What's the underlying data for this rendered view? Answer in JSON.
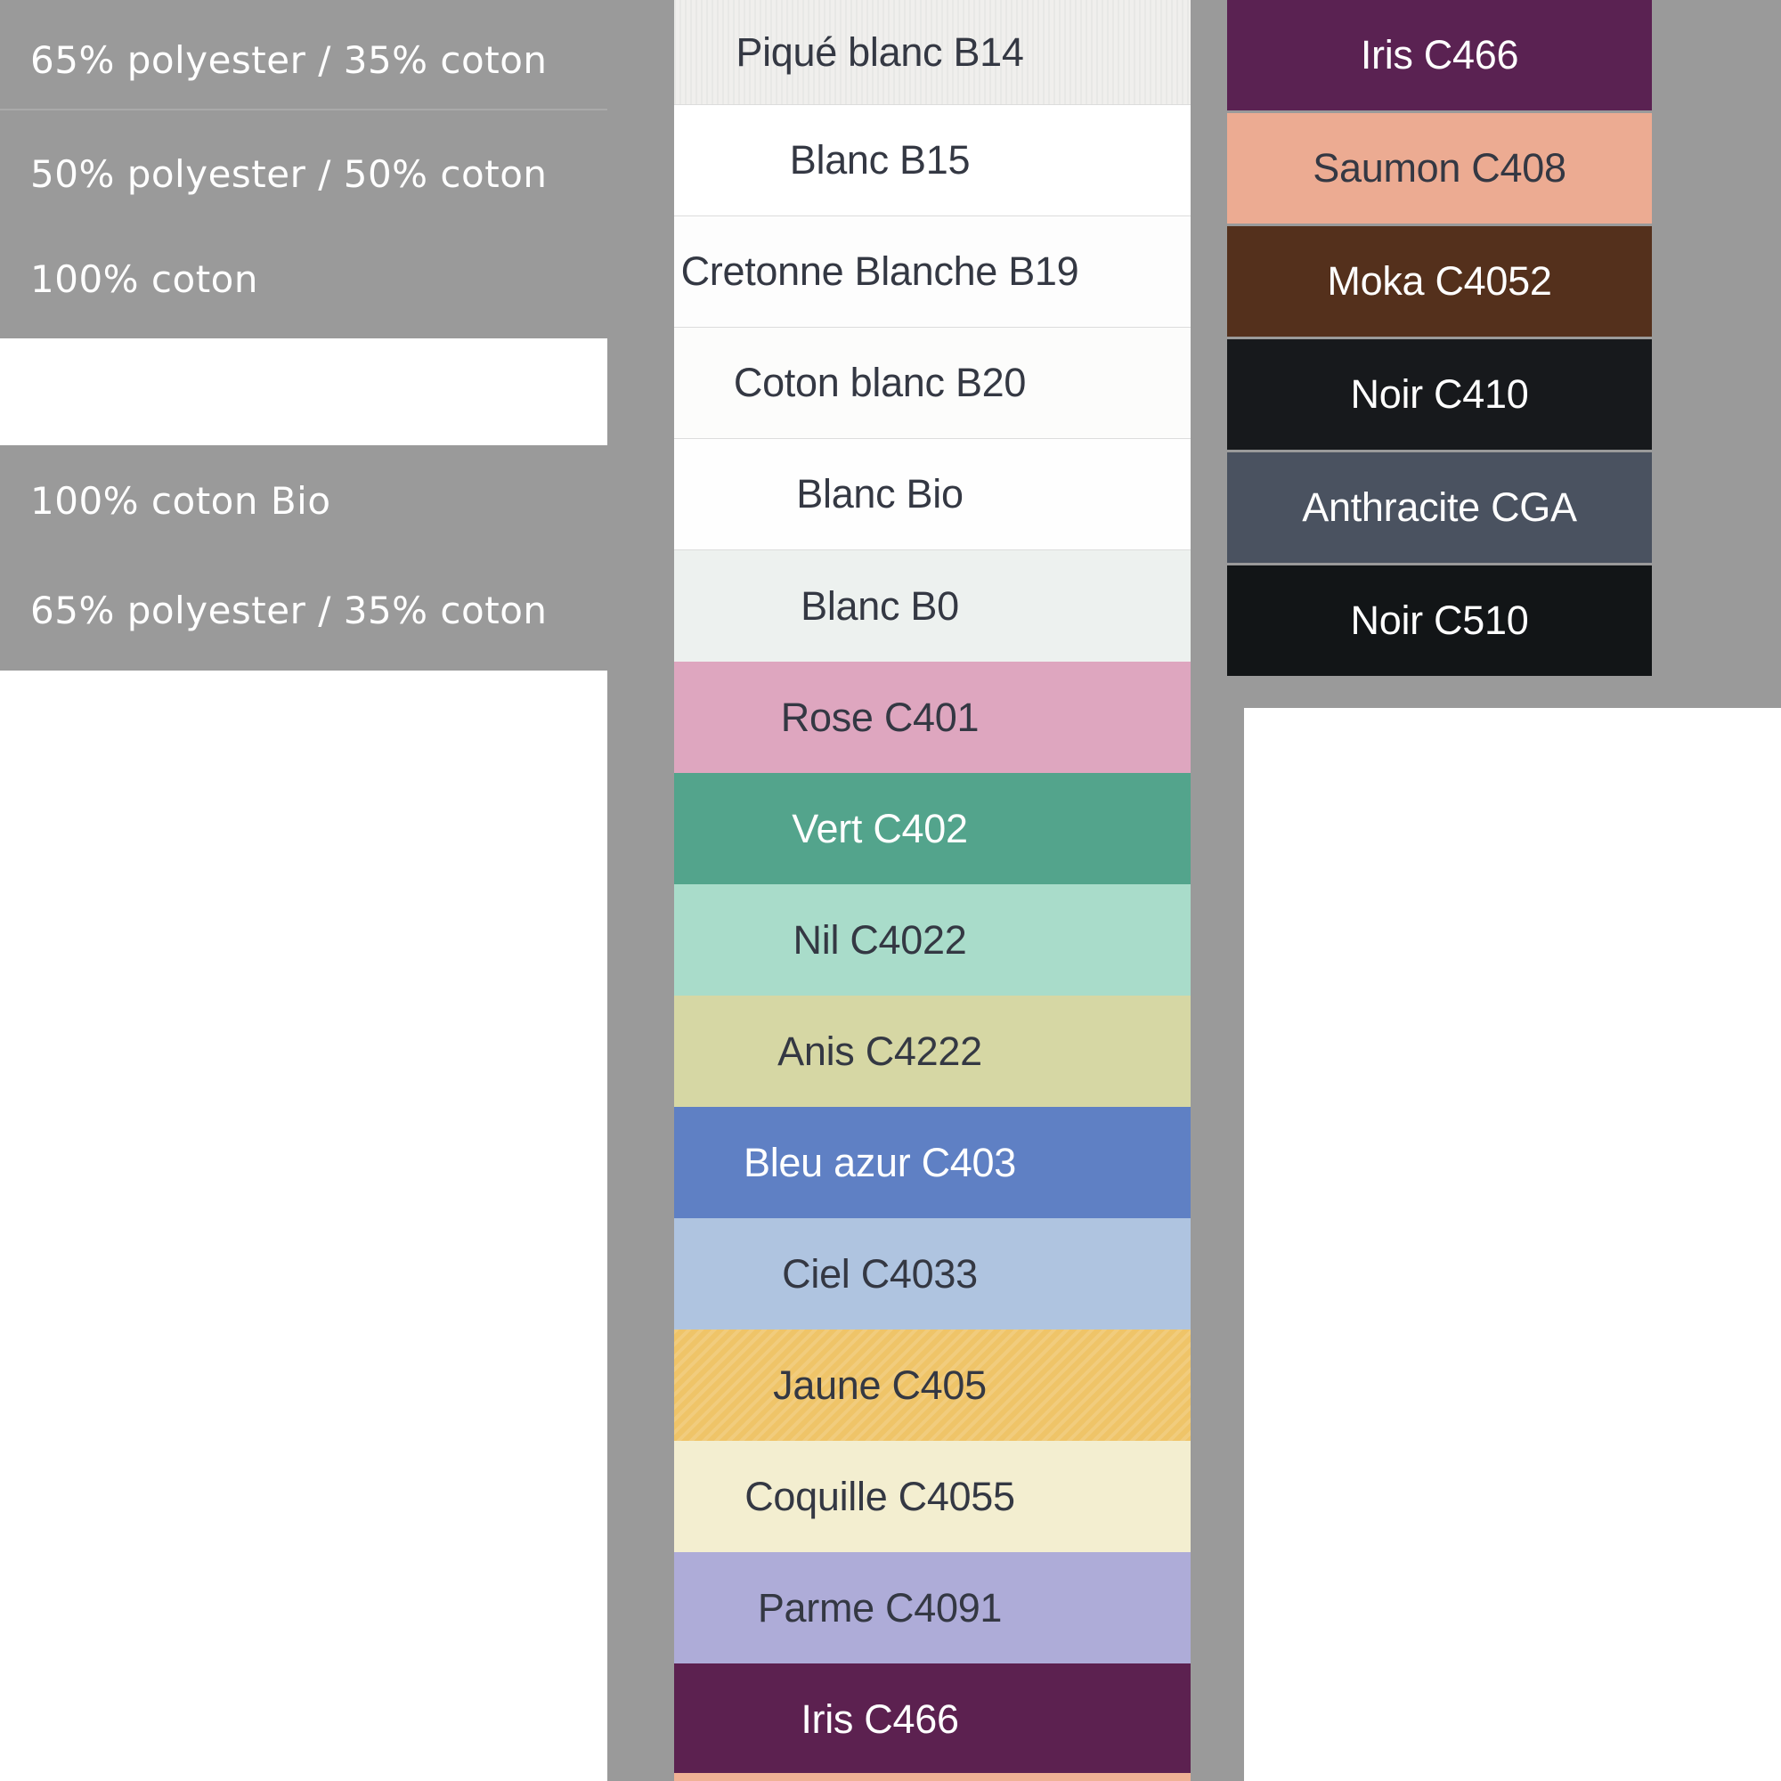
{
  "page": {
    "background_gray": "#9a9a9a",
    "white": "#ffffff",
    "left_divider_color": "#aaaaaa",
    "swatch_text_dark": "#343843",
    "swatch_text_light": "#ffffff"
  },
  "left_panel": {
    "text_color": "#ffffff",
    "rows": [
      {
        "label": "65% polyester / 35% coton"
      },
      {
        "label": "50% polyester / 50% coton"
      },
      {
        "label": "100% coton"
      },
      {
        "label": ""
      },
      {
        "label": "100% coton Bio"
      },
      {
        "label": "65% polyester / 35% coton"
      }
    ]
  },
  "middle_column": {
    "swatches": [
      {
        "name": "Piqué blanc B14",
        "color": "#f0efed"
      },
      {
        "name": "Blanc B15",
        "color": "#ffffff"
      },
      {
        "name": "Cretonne Blanche B19",
        "color": "#fdfdfd"
      },
      {
        "name": "Coton blanc B20",
        "color": "#fcfcfb"
      },
      {
        "name": "Blanc Bio",
        "color": "#fefefe"
      },
      {
        "name": "Blanc B0",
        "color": "#edf1ef"
      },
      {
        "name": "Rose C401",
        "color": "#dea6bf"
      },
      {
        "name": "Vert C402",
        "color": "#53a48c"
      },
      {
        "name": "Nil C4022",
        "color": "#a9dcca"
      },
      {
        "name": "Anis C4222",
        "color": "#d6d7a4"
      },
      {
        "name": "Bleu azur C403",
        "color": "#5f80c4"
      },
      {
        "name": "Ciel C4033",
        "color": "#afc4e0"
      },
      {
        "name": "Jaune C405",
        "color": "#efc468"
      },
      {
        "name": "Coquille C4055",
        "color": "#f3eed0"
      },
      {
        "name": "Parme C4091",
        "color": "#aeacd8"
      },
      {
        "name": "Iris C466",
        "color": "#5c2150"
      }
    ],
    "partial_bottom_swatch_color": "#f0b295"
  },
  "right_column": {
    "swatches": [
      {
        "name": "Iris C466",
        "color": "#5a2252"
      },
      {
        "name": "Saumon C408",
        "color": "#ecab92"
      },
      {
        "name": "Moka C4052",
        "color": "#54301c"
      },
      {
        "name": "Noir C410",
        "color": "#17191c"
      },
      {
        "name": "Anthracite CGA",
        "color": "#4a5260"
      },
      {
        "name": "Noir C510",
        "color": "#121517"
      }
    ]
  }
}
